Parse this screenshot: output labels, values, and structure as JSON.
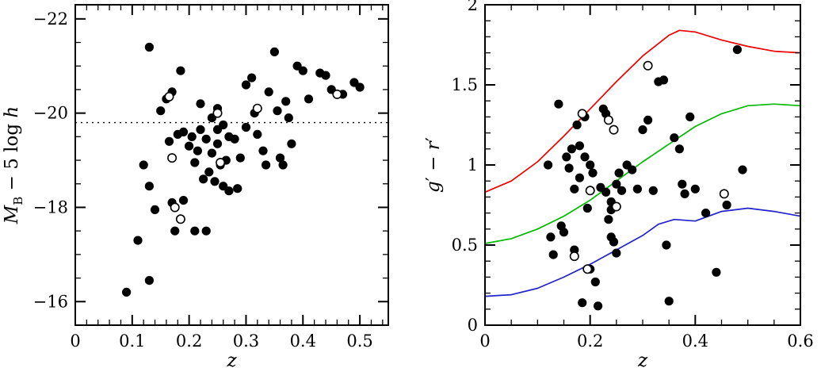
{
  "figure": {
    "background": "#ffffff",
    "n_panels": 2
  },
  "chart_data": [
    {
      "type": "scatter",
      "title": "",
      "xlabel": "z",
      "ylabel": "M_B - 5 log h",
      "ylabel_rich": [
        {
          "t": "M",
          "i": 1
        },
        {
          "t": "B",
          "sub": 1
        },
        {
          "t": " − 5 log ",
          "i": 0
        },
        {
          "t": "h",
          "i": 1
        }
      ],
      "xlabel_rich": [
        {
          "t": "z",
          "i": 1
        }
      ],
      "xlim": [
        0,
        0.55
      ],
      "ylim": [
        -15.5,
        -22.3
      ],
      "x_ticks": [
        0,
        0.1,
        0.2,
        0.3,
        0.4,
        0.5
      ],
      "x_tick_labels": [
        "0",
        "0.1",
        "0.2",
        "0.3",
        "0.4",
        "0.5"
      ],
      "x_minor_step": 0.02,
      "y_ticks": [
        -16,
        -18,
        -20,
        -22
      ],
      "y_tick_labels": [
        "−16",
        "−18",
        "−20",
        "−22"
      ],
      "y_minor_step": 0.5,
      "grid": false,
      "hline": {
        "y": -19.8,
        "style": "dotted",
        "color": "#000000"
      },
      "series": [
        {
          "name": "filled-circles",
          "marker": "filled-circle",
          "color": "#000000",
          "points": [
            [
              0.09,
              -16.2
            ],
            [
              0.13,
              -16.45
            ],
            [
              0.11,
              -17.3
            ],
            [
              0.12,
              -18.9
            ],
            [
              0.13,
              -18.45
            ],
            [
              0.14,
              -17.95
            ],
            [
              0.13,
              -21.4
            ],
            [
              0.15,
              -20.05
            ],
            [
              0.16,
              -20.3
            ],
            [
              0.165,
              -19.4
            ],
            [
              0.17,
              -20.45
            ],
            [
              0.17,
              -18.1
            ],
            [
              0.175,
              -17.5
            ],
            [
              0.18,
              -19.55
            ],
            [
              0.185,
              -20.9
            ],
            [
              0.19,
              -19.6
            ],
            [
              0.19,
              -18.15
            ],
            [
              0.2,
              -19.3
            ],
            [
              0.205,
              -19.5
            ],
            [
              0.21,
              -17.5
            ],
            [
              0.21,
              -18.95
            ],
            [
              0.215,
              -19.2
            ],
            [
              0.22,
              -19.65
            ],
            [
              0.22,
              -20.2
            ],
            [
              0.225,
              -18.6
            ],
            [
              0.23,
              -19.45
            ],
            [
              0.23,
              -17.5
            ],
            [
              0.235,
              -18.75
            ],
            [
              0.24,
              -19.9
            ],
            [
              0.24,
              -19.15
            ],
            [
              0.245,
              -18.55
            ],
            [
              0.25,
              -20.1
            ],
            [
              0.25,
              -19.65
            ],
            [
              0.25,
              -19.35
            ],
            [
              0.255,
              -18.9
            ],
            [
              0.26,
              -19.75
            ],
            [
              0.26,
              -18.45
            ],
            [
              0.265,
              -19.0
            ],
            [
              0.27,
              -19.5
            ],
            [
              0.27,
              -18.35
            ],
            [
              0.28,
              -19.45
            ],
            [
              0.285,
              -18.4
            ],
            [
              0.29,
              -19.05
            ],
            [
              0.3,
              -20.6
            ],
            [
              0.3,
              -19.7
            ],
            [
              0.31,
              -20.75
            ],
            [
              0.315,
              -20.0
            ],
            [
              0.32,
              -19.55
            ],
            [
              0.33,
              -19.2
            ],
            [
              0.335,
              -18.9
            ],
            [
              0.34,
              -20.45
            ],
            [
              0.35,
              -21.3
            ],
            [
              0.355,
              -20.05
            ],
            [
              0.36,
              -19.05
            ],
            [
              0.365,
              -18.9
            ],
            [
              0.37,
              -20.25
            ],
            [
              0.375,
              -19.9
            ],
            [
              0.38,
              -19.35
            ],
            [
              0.39,
              -21.0
            ],
            [
              0.4,
              -20.9
            ],
            [
              0.41,
              -20.3
            ],
            [
              0.43,
              -20.85
            ],
            [
              0.44,
              -20.8
            ],
            [
              0.45,
              -20.5
            ],
            [
              0.47,
              -20.4
            ],
            [
              0.49,
              -20.65
            ],
            [
              0.5,
              -20.55
            ]
          ]
        },
        {
          "name": "open-circles",
          "marker": "open-circle",
          "color": "#000000",
          "points": [
            [
              0.165,
              -20.35
            ],
            [
              0.17,
              -19.05
            ],
            [
              0.175,
              -18.0
            ],
            [
              0.185,
              -17.75
            ],
            [
              0.25,
              -20.0
            ],
            [
              0.255,
              -18.95
            ],
            [
              0.32,
              -20.1
            ],
            [
              0.46,
              -20.4
            ]
          ]
        }
      ]
    },
    {
      "type": "scatter+line",
      "title": "",
      "xlabel": "z",
      "ylabel": "g' - r'",
      "ylabel_rich": [
        {
          "t": "g",
          "i": 1
        },
        {
          "t": "′",
          "i": 0
        },
        {
          "t": " − ",
          "i": 0
        },
        {
          "t": "r",
          "i": 1
        },
        {
          "t": "′",
          "i": 0
        }
      ],
      "xlabel_rich": [
        {
          "t": "z",
          "i": 1
        }
      ],
      "xlim": [
        0,
        0.6
      ],
      "ylim": [
        0,
        2
      ],
      "x_ticks": [
        0,
        0.2,
        0.4,
        0.6
      ],
      "x_tick_labels": [
        "0",
        "0.2",
        "0.4",
        "0.6"
      ],
      "x_minor_step": 0.05,
      "y_ticks": [
        0,
        0.5,
        1,
        1.5,
        2
      ],
      "y_tick_labels": [
        "0",
        "0.5",
        "1",
        "1.5",
        "2"
      ],
      "y_minor_step": 0.1,
      "grid": false,
      "curves": [
        {
          "name": "red-model-track",
          "color": "#ee0000",
          "points": [
            [
              0,
              0.83
            ],
            [
              0.05,
              0.9
            ],
            [
              0.1,
              1.02
            ],
            [
              0.15,
              1.18
            ],
            [
              0.2,
              1.35
            ],
            [
              0.25,
              1.52
            ],
            [
              0.3,
              1.68
            ],
            [
              0.35,
              1.81
            ],
            [
              0.37,
              1.84
            ],
            [
              0.4,
              1.83
            ],
            [
              0.45,
              1.78
            ],
            [
              0.5,
              1.74
            ],
            [
              0.55,
              1.71
            ],
            [
              0.6,
              1.7
            ]
          ]
        },
        {
          "name": "green-model-track",
          "color": "#00bb00",
          "points": [
            [
              0,
              0.51
            ],
            [
              0.05,
              0.54
            ],
            [
              0.1,
              0.6
            ],
            [
              0.15,
              0.68
            ],
            [
              0.2,
              0.78
            ],
            [
              0.25,
              0.9
            ],
            [
              0.3,
              1.02
            ],
            [
              0.35,
              1.13
            ],
            [
              0.4,
              1.24
            ],
            [
              0.45,
              1.32
            ],
            [
              0.5,
              1.37
            ],
            [
              0.55,
              1.38
            ],
            [
              0.6,
              1.37
            ]
          ]
        },
        {
          "name": "blue-model-track",
          "color": "#2222cc",
          "points": [
            [
              0,
              0.18
            ],
            [
              0.05,
              0.19
            ],
            [
              0.1,
              0.23
            ],
            [
              0.15,
              0.3
            ],
            [
              0.2,
              0.38
            ],
            [
              0.25,
              0.47
            ],
            [
              0.3,
              0.56
            ],
            [
              0.33,
              0.63
            ],
            [
              0.36,
              0.66
            ],
            [
              0.4,
              0.65
            ],
            [
              0.45,
              0.71
            ],
            [
              0.5,
              0.73
            ],
            [
              0.55,
              0.71
            ],
            [
              0.6,
              0.68
            ]
          ]
        }
      ],
      "series": [
        {
          "name": "filled-circles",
          "marker": "filled-circle",
          "color": "#000000",
          "points": [
            [
              0.12,
              1.0
            ],
            [
              0.125,
              0.55
            ],
            [
              0.13,
              0.44
            ],
            [
              0.14,
              1.38
            ],
            [
              0.145,
              0.62
            ],
            [
              0.15,
              0.58
            ],
            [
              0.155,
              1.05
            ],
            [
              0.16,
              0.98
            ],
            [
              0.165,
              1.1
            ],
            [
              0.17,
              0.85
            ],
            [
              0.17,
              0.47
            ],
            [
              0.175,
              1.25
            ],
            [
              0.18,
              1.12
            ],
            [
              0.18,
              0.92
            ],
            [
              0.185,
              0.14
            ],
            [
              0.19,
              1.3
            ],
            [
              0.19,
              1.05
            ],
            [
              0.195,
              0.73
            ],
            [
              0.2,
              1.0
            ],
            [
              0.2,
              0.35
            ],
            [
              0.205,
              0.95
            ],
            [
              0.21,
              0.27
            ],
            [
              0.215,
              0.12
            ],
            [
              0.22,
              0.86
            ],
            [
              0.225,
              1.35
            ],
            [
              0.23,
              1.32
            ],
            [
              0.23,
              0.83
            ],
            [
              0.235,
              0.66
            ],
            [
              0.24,
              0.77
            ],
            [
              0.24,
              0.72
            ],
            [
              0.24,
              0.55
            ],
            [
              0.245,
              0.52
            ],
            [
              0.25,
              0.45
            ],
            [
              0.25,
              0.88
            ],
            [
              0.255,
              0.95
            ],
            [
              0.26,
              0.84
            ],
            [
              0.27,
              1.0
            ],
            [
              0.28,
              0.97
            ],
            [
              0.29,
              0.85
            ],
            [
              0.3,
              1.22
            ],
            [
              0.31,
              1.28
            ],
            [
              0.32,
              0.84
            ],
            [
              0.33,
              1.52
            ],
            [
              0.34,
              1.53
            ],
            [
              0.345,
              0.5
            ],
            [
              0.35,
              0.15
            ],
            [
              0.36,
              1.17
            ],
            [
              0.37,
              1.1
            ],
            [
              0.375,
              0.88
            ],
            [
              0.38,
              0.82
            ],
            [
              0.39,
              1.3
            ],
            [
              0.4,
              0.85
            ],
            [
              0.42,
              0.7
            ],
            [
              0.44,
              0.33
            ],
            [
              0.46,
              0.75
            ],
            [
              0.48,
              1.72
            ],
            [
              0.49,
              0.97
            ]
          ]
        },
        {
          "name": "open-circles",
          "marker": "open-circle",
          "color": "#000000",
          "points": [
            [
              0.17,
              0.43
            ],
            [
              0.185,
              1.32
            ],
            [
              0.195,
              0.35
            ],
            [
              0.2,
              0.84
            ],
            [
              0.235,
              1.28
            ],
            [
              0.245,
              1.22
            ],
            [
              0.25,
              0.74
            ],
            [
              0.31,
              1.62
            ],
            [
              0.455,
              0.82
            ]
          ]
        }
      ]
    }
  ]
}
